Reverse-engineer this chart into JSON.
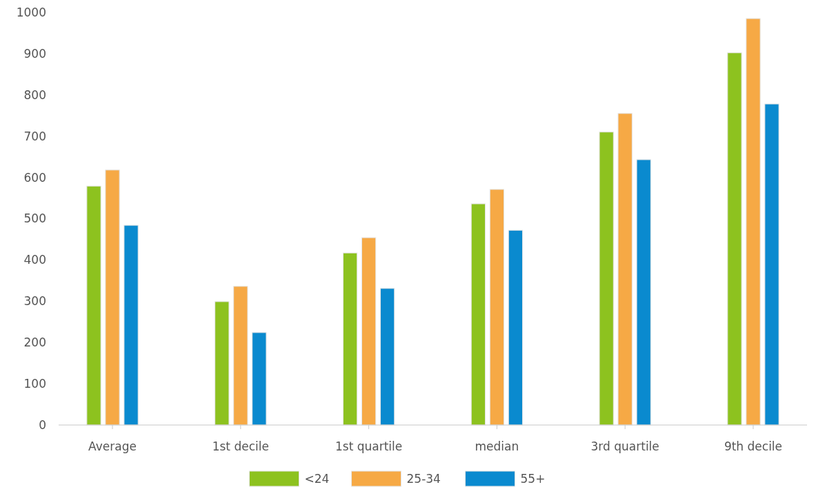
{
  "chart_data": {
    "type": "bar",
    "categories": [
      "Average",
      "1st decile",
      "1st quartile",
      "median",
      "3rd quartile",
      "9th decile"
    ],
    "series": [
      {
        "name": "<24",
        "color": "#8dc21f",
        "values": [
          579,
          299,
          417,
          536,
          710,
          902
        ]
      },
      {
        "name": "25-34",
        "color": "#f6a945",
        "values": [
          618,
          336,
          454,
          571,
          755,
          985
        ]
      },
      {
        "name": "55+",
        "color": "#0a8acf",
        "values": [
          484,
          224,
          331,
          472,
          643,
          778
        ]
      }
    ],
    "ylim": [
      0,
      1000
    ],
    "yticks": [
      0,
      100,
      200,
      300,
      400,
      500,
      600,
      700,
      800,
      900,
      1000
    ],
    "grid": false,
    "legend": "bottom"
  }
}
